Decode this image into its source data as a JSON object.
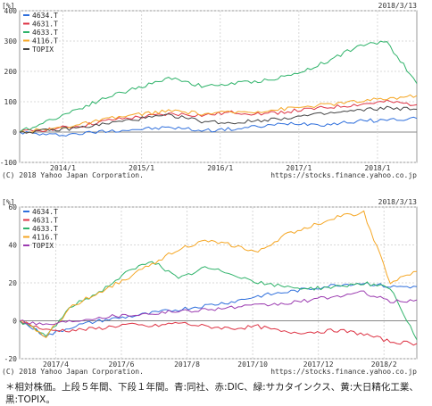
{
  "chart_data": [
    {
      "type": "line",
      "unit_label": "[%]",
      "date": "2018/3/13",
      "ylim": [
        -100,
        400
      ],
      "yticks": [
        -100,
        0,
        100,
        200,
        300,
        400
      ],
      "xticks": [
        "2014/1",
        "2015/1",
        "2016/1",
        "2017/1",
        "2018/1"
      ],
      "copyright": "(C) 2018 Yahoo Japan Corporation.",
      "source": "https://stocks.finance.yahoo.co.jp",
      "series": [
        {
          "name": "4634.T",
          "color": "#2f6fdc",
          "values": [
            0,
            -10,
            -5,
            5,
            10,
            15,
            5,
            10,
            20,
            30,
            25,
            35,
            40,
            45
          ]
        },
        {
          "name": "4631.T",
          "color": "#dd3344",
          "values": [
            0,
            10,
            20,
            40,
            50,
            60,
            55,
            65,
            60,
            70,
            80,
            90,
            100,
            90
          ]
        },
        {
          "name": "4633.T",
          "color": "#2fb36a",
          "values": [
            0,
            40,
            80,
            120,
            150,
            180,
            150,
            160,
            170,
            190,
            230,
            280,
            300,
            160
          ]
        },
        {
          "name": "4116.T",
          "color": "#f5a623",
          "values": [
            0,
            10,
            25,
            45,
            60,
            70,
            60,
            65,
            70,
            80,
            90,
            100,
            110,
            120
          ]
        },
        {
          "name": "TOPIX",
          "color": "#444444",
          "values": [
            0,
            5,
            15,
            30,
            45,
            55,
            35,
            30,
            40,
            50,
            60,
            70,
            80,
            75
          ]
        }
      ]
    },
    {
      "type": "line",
      "unit_label": "[%]",
      "date": "2018/3/13",
      "ylim": [
        -20,
        60
      ],
      "yticks": [
        -20,
        0,
        20,
        40,
        60
      ],
      "xticks": [
        "2017/4",
        "2017/6",
        "2017/8",
        "2017/10",
        "2017/12",
        "2018/2"
      ],
      "copyright": "(C) 2018 Yahoo Japan Corporation.",
      "source": "https://stocks.finance.yahoo.co.jp",
      "series": [
        {
          "name": "4634.T",
          "color": "#2f6fdc",
          "values": [
            0,
            -8,
            -3,
            0,
            2,
            4,
            6,
            8,
            10,
            13,
            15,
            17,
            19,
            20,
            18,
            18
          ]
        },
        {
          "name": "4631.T",
          "color": "#dd3344",
          "values": [
            0,
            -5,
            -5,
            -4,
            -2,
            -3,
            -1,
            -3,
            -4,
            -3,
            -6,
            -6,
            -5,
            -7,
            -11,
            -12
          ]
        },
        {
          "name": "4633.T",
          "color": "#2fb36a",
          "values": [
            0,
            -8,
            8,
            15,
            25,
            32,
            22,
            28,
            25,
            20,
            18,
            17,
            18,
            20,
            17,
            -10
          ]
        },
        {
          "name": "4116.T",
          "color": "#f5a623",
          "values": [
            0,
            -8,
            8,
            15,
            22,
            30,
            38,
            42,
            40,
            36,
            45,
            50,
            55,
            57,
            20,
            26
          ]
        },
        {
          "name": "TOPIX",
          "color": "#9b3bb0",
          "values": [
            0,
            -2,
            0,
            2,
            3,
            4,
            5,
            6,
            7,
            8,
            9,
            11,
            13,
            15,
            10,
            11
          ]
        }
      ]
    }
  ],
  "footnote": {
    "line1": "＊相対株価。上段５年間、下段１年間。青:同社、赤:DIC、緑:サカタインクス、黄:大日精化工業、",
    "line2": "黒:TOPIX。"
  }
}
